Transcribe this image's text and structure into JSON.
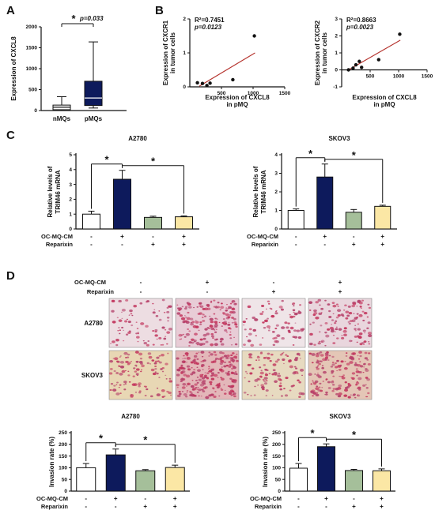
{
  "panels": [
    "A",
    "B",
    "C",
    "D"
  ],
  "signs": {
    "plus": "+",
    "minus": "-"
  },
  "star": "*",
  "panel_a": {
    "p_text": "p=0.033",
    "chart_data": {
      "type": "box",
      "ylabel": "Expression of CXCL8",
      "ylim": [
        0,
        2000
      ],
      "yticks": [
        "0",
        "500",
        "1000",
        "1500",
        "2000"
      ],
      "categories": [
        "nMQs",
        "pMQs"
      ],
      "boxes": [
        {
          "category": "nMQs",
          "min": 0,
          "q1": 20,
          "median": 80,
          "q3": 130,
          "max": 330
        },
        {
          "category": "pMQs",
          "min": 60,
          "q1": 120,
          "median": 300,
          "q3": 700,
          "max": 1640
        }
      ],
      "significance": [
        {
          "pair": [
            "nMQs",
            "pMQs"
          ],
          "marker": "*",
          "text": "p=0.033"
        }
      ]
    }
  },
  "panel_b": [
    {
      "r2": "R²=0.7451",
      "p": "p=0.0123",
      "chart_data": {
        "type": "scatter",
        "xlabel": [
          "Expression of CXCL8",
          "in pMQ"
        ],
        "ylabel": [
          "Expression of CXCR1",
          "in tumor cells"
        ],
        "xlim": [
          0,
          1500
        ],
        "ylim": [
          0,
          2
        ],
        "xticks": [
          "500",
          "1000",
          "1500"
        ],
        "yticks": [
          "0",
          "1",
          "2"
        ],
        "points": [
          [
            120,
            0.12
          ],
          [
            200,
            0.1
          ],
          [
            270,
            0.04
          ],
          [
            320,
            0.11
          ],
          [
            680,
            0.21
          ],
          [
            1020,
            1.5
          ]
        ],
        "fit": [
          [
            150,
            0.02
          ],
          [
            1030,
            1.0
          ]
        ]
      }
    },
    {
      "r2": "R²=0.8663",
      "p": "p=0.0023",
      "chart_data": {
        "type": "scatter",
        "xlabel": [
          "Expression of CXCL8",
          "in pMQ"
        ],
        "ylabel": [
          "Expression of CXCR2",
          "in tumor cells"
        ],
        "xlim": [
          0,
          1500
        ],
        "ylim": [
          -1,
          3
        ],
        "xticks": [
          "500",
          "1000",
          "1500"
        ],
        "yticks": [
          "-1",
          "0",
          "1",
          "2",
          "3"
        ],
        "points": [
          [
            120,
            0.0
          ],
          [
            200,
            0.1
          ],
          [
            250,
            0.3
          ],
          [
            310,
            0.5
          ],
          [
            350,
            0.15
          ],
          [
            650,
            0.6
          ],
          [
            1020,
            2.1
          ]
        ],
        "fit": [
          [
            120,
            0.0
          ],
          [
            1030,
            1.75
          ]
        ]
      }
    }
  ],
  "panel_c": [
    {
      "chart_data": {
        "type": "bar",
        "title": "A2780",
        "ylabel": [
          "Relative levels of",
          "TRIM46 mRNA"
        ],
        "ylim": [
          0,
          5
        ],
        "yticks": [
          "0",
          "1",
          "2",
          "3",
          "4",
          "5"
        ],
        "values": [
          1.0,
          3.35,
          0.78,
          0.82
        ],
        "errors": [
          0.2,
          0.6,
          0.08,
          0.06
        ],
        "colors": [
          "#ffffff",
          "#0d1a5c",
          "#a5bf9a",
          "#fbe7a5"
        ],
        "conditions": [
          {
            "label": "OC-MQ-CM",
            "signs": [
              "-",
              "+",
              "-",
              "+"
            ]
          },
          {
            "label": "Reparixin",
            "signs": [
              "-",
              "-",
              "+",
              "+"
            ]
          }
        ],
        "significance": [
          {
            "pair": [
              0,
              1
            ],
            "marker": "*"
          },
          {
            "pair": [
              1,
              3
            ],
            "marker": "*"
          }
        ]
      }
    },
    {
      "chart_data": {
        "type": "bar",
        "title": "SKOV3",
        "ylabel": [
          "Relative levels of",
          "TRIM46 mRNA"
        ],
        "ylim": [
          0,
          4
        ],
        "yticks": [
          "0",
          "1",
          "2",
          "3",
          "4"
        ],
        "values": [
          1.0,
          2.8,
          0.9,
          1.22
        ],
        "errors": [
          0.08,
          0.7,
          0.15,
          0.06
        ],
        "colors": [
          "#ffffff",
          "#0d1a5c",
          "#a5bf9a",
          "#fbe7a5"
        ],
        "conditions": [
          {
            "label": "OC-MQ-CM",
            "signs": [
              "-",
              "+",
              "-",
              "+"
            ]
          },
          {
            "label": "Reparixin",
            "signs": [
              "-",
              "-",
              "+",
              "+"
            ]
          }
        ],
        "significance": [
          {
            "pair": [
              0,
              1
            ],
            "marker": "*"
          },
          {
            "pair": [
              1,
              3
            ],
            "marker": "*"
          }
        ]
      }
    }
  ],
  "panel_d": {
    "header": {
      "rows": [
        {
          "label": "OC-MQ-CM",
          "signs": [
            "-",
            "+",
            "-",
            "+"
          ]
        },
        {
          "label": "Reparixin",
          "signs": [
            "-",
            "-",
            "+",
            "+"
          ]
        }
      ]
    },
    "micrographs": {
      "rows": [
        "A2780",
        "SKOV3"
      ],
      "row_colors": [
        [
          "#eddde2",
          "#e8ccd6",
          "#efe5e8",
          "#e9d6dd"
        ],
        [
          "#e8d7b4",
          "#e3b7b9",
          "#e7dac0",
          "#e4c6b6"
        ]
      ],
      "stain_colors": [
        "#c2335b",
        "#b4406a"
      ]
    },
    "charts": [
      {
        "chart_data": {
          "type": "bar",
          "title": "A2780",
          "ylabel": "Invasion rate (%)",
          "ylim": [
            0,
            250
          ],
          "yticks": [
            "0",
            "50",
            "100",
            "150",
            "200",
            "250"
          ],
          "values": [
            100,
            155,
            87,
            101
          ],
          "errors": [
            18,
            25,
            5,
            10
          ],
          "colors": [
            "#ffffff",
            "#0d1a5c",
            "#a5bf9a",
            "#fbe7a5"
          ],
          "conditions": [
            {
              "label": "OC-MQ-CM",
              "signs": [
                "-",
                "+",
                "-",
                "+"
              ]
            },
            {
              "label": "Reparixin",
              "signs": [
                "-",
                "-",
                "+",
                "+"
              ]
            }
          ],
          "significance": [
            {
              "pair": [
                0,
                1
              ],
              "marker": "*"
            },
            {
              "pair": [
                1,
                3
              ],
              "marker": "*"
            }
          ]
        }
      },
      {
        "chart_data": {
          "type": "bar",
          "title": "SKOV3",
          "ylabel": "Invasion rate (%)",
          "ylim": [
            0,
            250
          ],
          "yticks": [
            "0",
            "50",
            "100",
            "150",
            "200",
            "250"
          ],
          "values": [
            98,
            190,
            88,
            87
          ],
          "errors": [
            20,
            12,
            5,
            8
          ],
          "colors": [
            "#ffffff",
            "#0d1a5c",
            "#a5bf9a",
            "#fbe7a5"
          ],
          "conditions": [
            {
              "label": "OC-MQ-CM",
              "signs": [
                "-",
                "+",
                "-",
                "+"
              ]
            },
            {
              "label": "Reparixin",
              "signs": [
                "-",
                "-",
                "+",
                "+"
              ]
            }
          ],
          "significance": [
            {
              "pair": [
                0,
                1
              ],
              "marker": "*"
            },
            {
              "pair": [
                1,
                3
              ],
              "marker": "*"
            }
          ]
        }
      }
    ]
  }
}
